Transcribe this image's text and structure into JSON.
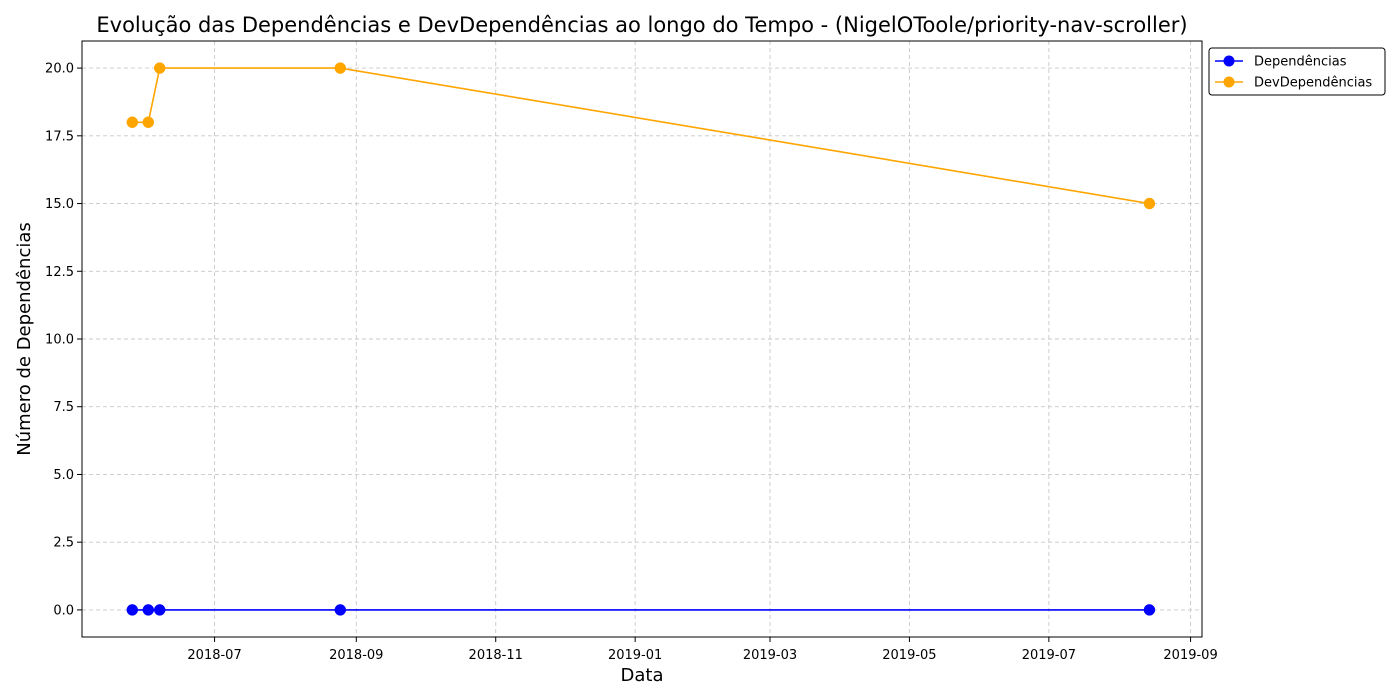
{
  "chart_data": {
    "type": "line",
    "title": "Evolução das Dependências e DevDependências ao longo do Tempo - (NigelOToole/priority-nav-scroller)",
    "xlabel": "Data",
    "ylabel": "Número de Dependências",
    "x": [
      "2018-05-26",
      "2018-06-02",
      "2018-06-07",
      "2018-08-25",
      "2019-08-14"
    ],
    "series": [
      {
        "name": "Dependências",
        "color": "#0000ff",
        "values": [
          0,
          0,
          0,
          0,
          0
        ]
      },
      {
        "name": "DevDependências",
        "color": "#ffa500",
        "values": [
          18,
          18,
          20,
          20,
          15
        ]
      }
    ],
    "xlim": [
      "2018-05-04",
      "2019-09-06"
    ],
    "ylim": [
      -1,
      21
    ],
    "x_ticks": [
      "2018-07-01",
      "2018-09-01",
      "2018-11-01",
      "2019-01-01",
      "2019-03-01",
      "2019-05-01",
      "2019-07-01",
      "2019-09-01"
    ],
    "x_tick_labels": [
      "2018-07",
      "2018-09",
      "2018-11",
      "2019-01",
      "2019-03",
      "2019-05",
      "2019-07",
      "2019-09"
    ],
    "y_ticks": [
      0,
      2.5,
      5,
      7.5,
      10,
      12.5,
      15,
      17.5,
      20
    ],
    "y_tick_labels": [
      "0.0",
      "2.5",
      "5.0",
      "7.5",
      "10.0",
      "12.5",
      "15.0",
      "17.5",
      "20.0"
    ],
    "grid": true,
    "grid_style": "dashed",
    "legend_position": "outside-top-right"
  }
}
